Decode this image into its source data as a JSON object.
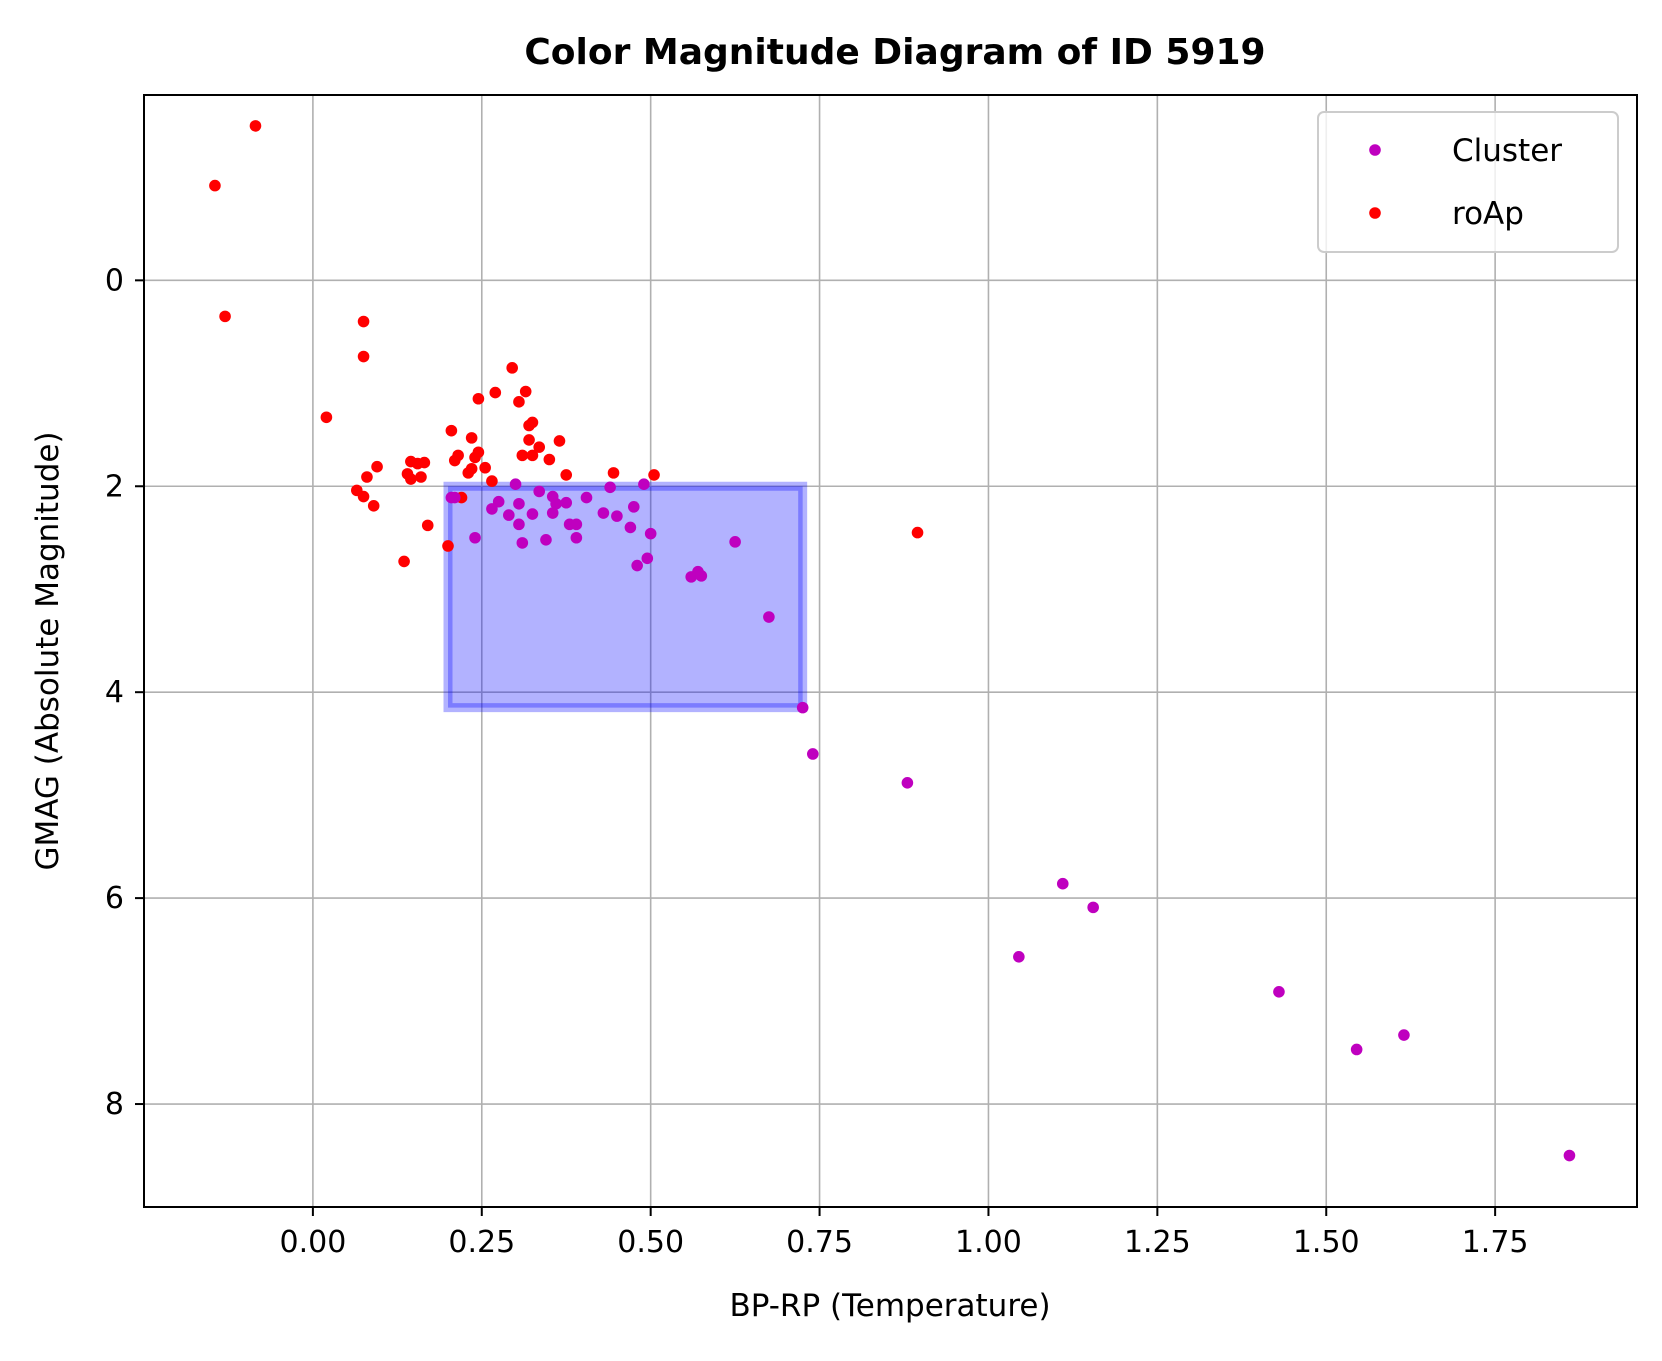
{
  "chart_data": {
    "type": "scatter",
    "title": "Color Magnitude Diagram of ID 5919",
    "xlabel": "BP-RP (Temperature)",
    "ylabel": "GMAG (Absolute Magnitude)",
    "xlim": [
      -0.25,
      1.96
    ],
    "ylim": [
      9.0,
      -1.8
    ],
    "y_inverted": true,
    "grid": true,
    "legend_position": "top-right",
    "x_ticks": [
      0.0,
      0.25,
      0.5,
      0.75,
      1.0,
      1.25,
      1.5,
      1.75
    ],
    "x_tick_labels": [
      "0.00",
      "0.25",
      "0.50",
      "0.75",
      "1.00",
      "1.25",
      "1.50",
      "1.75"
    ],
    "y_ticks": [
      0,
      2,
      4,
      6,
      8
    ],
    "y_tick_labels": [
      "0",
      "2",
      "4",
      "6",
      "8"
    ],
    "region": {
      "x0": 0.2,
      "x1": 0.725,
      "y0": 2.0,
      "y1": 4.15,
      "color": "#0000ff",
      "fill_opacity": 0.3
    },
    "series": [
      {
        "name": "Cluster",
        "color": "#bf00bf",
        "points": [
          [
            0.205,
            2.11
          ],
          [
            0.21,
            2.11
          ],
          [
            0.24,
            2.5
          ],
          [
            0.265,
            2.22
          ],
          [
            0.275,
            2.15
          ],
          [
            0.29,
            2.28
          ],
          [
            0.3,
            1.98
          ],
          [
            0.305,
            2.17
          ],
          [
            0.305,
            2.37
          ],
          [
            0.31,
            2.55
          ],
          [
            0.325,
            2.27
          ],
          [
            0.335,
            2.05
          ],
          [
            0.345,
            2.52
          ],
          [
            0.355,
            2.1
          ],
          [
            0.355,
            2.26
          ],
          [
            0.36,
            2.17
          ],
          [
            0.375,
            2.16
          ],
          [
            0.38,
            2.37
          ],
          [
            0.39,
            2.37
          ],
          [
            0.39,
            2.5
          ],
          [
            0.405,
            2.11
          ],
          [
            0.43,
            2.26
          ],
          [
            0.44,
            2.01
          ],
          [
            0.45,
            2.29
          ],
          [
            0.47,
            2.4
          ],
          [
            0.475,
            2.2
          ],
          [
            0.48,
            2.77
          ],
          [
            0.49,
            1.98
          ],
          [
            0.495,
            2.7
          ],
          [
            0.5,
            2.46
          ],
          [
            0.56,
            2.88
          ],
          [
            0.57,
            2.83
          ],
          [
            0.575,
            2.87
          ],
          [
            0.625,
            2.54
          ],
          [
            0.675,
            3.27
          ],
          [
            0.725,
            4.15
          ],
          [
            0.74,
            4.6
          ],
          [
            0.88,
            4.88
          ],
          [
            1.045,
            6.57
          ],
          [
            1.11,
            5.86
          ],
          [
            1.155,
            6.09
          ],
          [
            1.43,
            6.91
          ],
          [
            1.545,
            7.47
          ],
          [
            1.615,
            7.33
          ],
          [
            1.86,
            8.5
          ]
        ]
      },
      {
        "name": "roAp",
        "color": "#ff0000",
        "points": [
          [
            -0.145,
            -0.92
          ],
          [
            -0.085,
            -1.5
          ],
          [
            -0.13,
            0.35
          ],
          [
            0.02,
            1.33
          ],
          [
            0.065,
            2.04
          ],
          [
            0.075,
            2.1
          ],
          [
            0.075,
            0.4
          ],
          [
            0.075,
            0.74
          ],
          [
            0.08,
            1.91
          ],
          [
            0.09,
            2.19
          ],
          [
            0.095,
            1.81
          ],
          [
            0.135,
            2.73
          ],
          [
            0.14,
            1.88
          ],
          [
            0.145,
            1.76
          ],
          [
            0.145,
            1.93
          ],
          [
            0.155,
            1.78
          ],
          [
            0.16,
            1.91
          ],
          [
            0.165,
            1.77
          ],
          [
            0.17,
            2.38
          ],
          [
            0.2,
            2.58
          ],
          [
            0.205,
            1.46
          ],
          [
            0.21,
            1.75
          ],
          [
            0.215,
            1.7
          ],
          [
            0.22,
            2.11
          ],
          [
            0.23,
            1.87
          ],
          [
            0.235,
            1.83
          ],
          [
            0.235,
            1.53
          ],
          [
            0.24,
            1.72
          ],
          [
            0.245,
            1.15
          ],
          [
            0.245,
            1.67
          ],
          [
            0.255,
            1.82
          ],
          [
            0.265,
            1.95
          ],
          [
            0.27,
            1.09
          ],
          [
            0.295,
            0.85
          ],
          [
            0.305,
            1.18
          ],
          [
            0.31,
            1.7
          ],
          [
            0.315,
            1.08
          ],
          [
            0.32,
            1.41
          ],
          [
            0.32,
            1.55
          ],
          [
            0.325,
            1.38
          ],
          [
            0.325,
            1.7
          ],
          [
            0.335,
            1.62
          ],
          [
            0.35,
            1.74
          ],
          [
            0.365,
            1.56
          ],
          [
            0.375,
            1.89
          ],
          [
            0.445,
            1.87
          ],
          [
            0.505,
            1.89
          ],
          [
            0.895,
            2.45
          ]
        ]
      }
    ]
  }
}
